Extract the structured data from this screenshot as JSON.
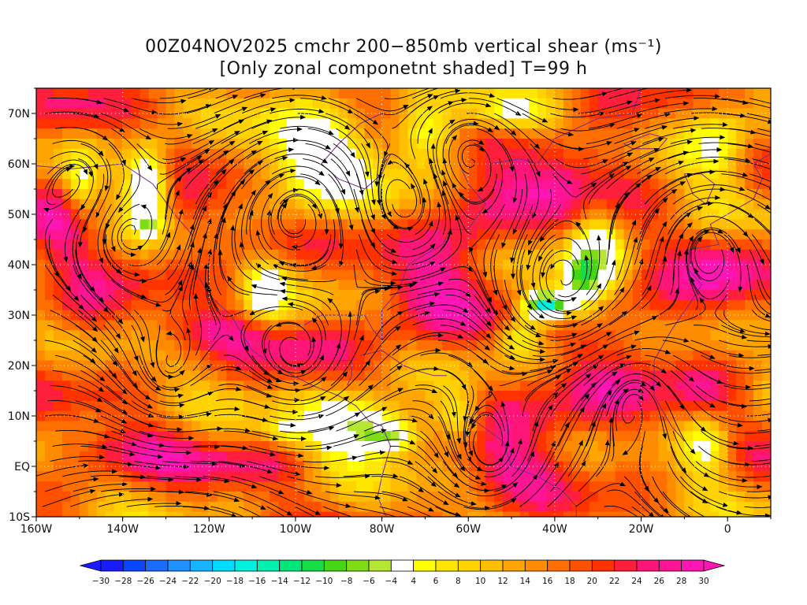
{
  "title": {
    "line1": "00Z04NOV2025 cmchr 200−850mb vertical shear (ms⁻¹)",
    "line2": "[Only zonal componetnt shaded] T=99 h"
  },
  "map": {
    "lon_range": [
      -160,
      10
    ],
    "lat_range": [
      -10,
      75
    ],
    "x_ticks": [
      {
        "lon": -160,
        "label": "160W"
      },
      {
        "lon": -140,
        "label": "140W"
      },
      {
        "lon": -120,
        "label": "120W"
      },
      {
        "lon": -100,
        "label": "100W"
      },
      {
        "lon": -80,
        "label": "80W"
      },
      {
        "lon": -60,
        "label": "60W"
      },
      {
        "lon": -40,
        "label": "40W"
      },
      {
        "lon": -20,
        "label": "20W"
      },
      {
        "lon": 0,
        "label": "0"
      }
    ],
    "y_ticks": [
      {
        "lat": 70,
        "label": "70N"
      },
      {
        "lat": 60,
        "label": "60N"
      },
      {
        "lat": 50,
        "label": "50N"
      },
      {
        "lat": 40,
        "label": "40N"
      },
      {
        "lat": 30,
        "label": "30N"
      },
      {
        "lat": 20,
        "label": "20N"
      },
      {
        "lat": 10,
        "label": "10N"
      },
      {
        "lat": 0,
        "label": "EQ"
      },
      {
        "lat": -10,
        "label": "10S"
      }
    ],
    "streamline_color": "#000000",
    "coastline_color": "#7a2a8a"
  },
  "colorbar": {
    "labels": [
      "-30",
      "-28",
      "-26",
      "-24",
      "-22",
      "-20",
      "-18",
      "-16",
      "-14",
      "-12",
      "-10",
      "-8",
      "-6",
      "-4",
      "4",
      "6",
      "8",
      "10",
      "12",
      "14",
      "16",
      "18",
      "20",
      "22",
      "24",
      "26",
      "28",
      "30"
    ],
    "colors": [
      "#1a1aff",
      "#0a45ff",
      "#1a6cff",
      "#1e90ff",
      "#14b4ff",
      "#00dcff",
      "#00f0e0",
      "#00f0b0",
      "#00e678",
      "#16dc46",
      "#46d614",
      "#80dc14",
      "#b4e632",
      "#ffffff",
      "#ffff00",
      "#ffe600",
      "#ffd200",
      "#ffbe00",
      "#ffa500",
      "#ff8c00",
      "#ff6e00",
      "#ff5000",
      "#ff3200",
      "#ff1e3c",
      "#ff1478",
      "#ff1496",
      "#ff14b4"
    ]
  }
}
